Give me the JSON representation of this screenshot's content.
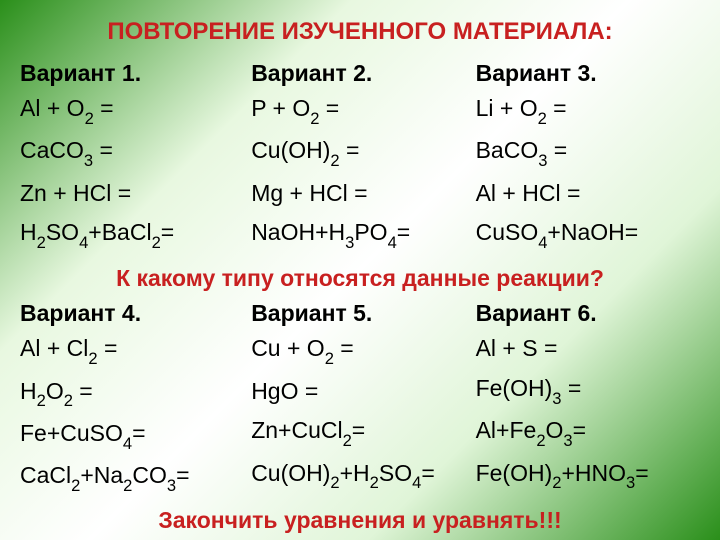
{
  "title_text": "ПОВТОРЕНИЕ ИЗУЧЕННОГО МАТЕРИАЛА:",
  "title_color": "#c82020",
  "title_fontsize": "24px",
  "var_header_fontsize": "23px",
  "eq_fontsize": "23px",
  "eq_color": "#000000",
  "question_text": "К какому типу относятся данные реакции?",
  "question_color": "#c82020",
  "question_fontsize": "23px",
  "footer_text": "Закончить уравнения и уравнять!!!",
  "footer_color": "#c82020",
  "footer_fontsize": "23px",
  "top": {
    "v1": {
      "header": "Вариант 1.",
      "r1": {
        "a": "Al + O",
        "s1": "2",
        "b": " ="
      },
      "r2": {
        "a": "CaCO",
        "s1": "3",
        "b": " ="
      },
      "r3": {
        "a": "Zn + HCl ="
      },
      "r4": {
        "a": "H",
        "s1": "2",
        "b": "SO",
        "s2": "4",
        "c": "+BaCl",
        "s3": "2",
        "d": "="
      }
    },
    "v2": {
      "header": "Вариант 2.",
      "r1": {
        "a": "P + O",
        "s1": "2",
        "b": " ="
      },
      "r2": {
        "a": "Cu(OH)",
        "s1": "2",
        "b": " ="
      },
      "r3": {
        "a": "Mg + HCl ="
      },
      "r4": {
        "a": "NaOH+H",
        "s1": "3",
        "b": "PO",
        "s2": "4",
        "c": "="
      }
    },
    "v3": {
      "header": "Вариант 3.",
      "r1": {
        "a": "Li + O",
        "s1": "2",
        "b": " ="
      },
      "r2": {
        "a": "BaCO",
        "s1": "3",
        "b": " ="
      },
      "r3": {
        "a": "Al + HCl ="
      },
      "r4": {
        "a": "CuSO",
        "s1": "4",
        "b": "+NaOH="
      }
    }
  },
  "bot": {
    "v4": {
      "header": "Вариант 4.",
      "r1": {
        "a": "Al + Cl",
        "s1": "2",
        "b": " ="
      },
      "r2": {
        "a": "H",
        "s1": "2",
        "b": "O",
        "s2": "2",
        "c": " ="
      },
      "r3": {
        "a": "Fe+CuSO",
        "s1": "4",
        "b": "="
      },
      "r4": {
        "a": "CaCl",
        "s1": "2",
        "b": "+Na",
        "s2": "2",
        "c": "CO",
        "s3": "3",
        "d": "="
      }
    },
    "v5": {
      "header": "Вариант 5.",
      "r1": {
        "a": "Cu + O",
        "s1": "2",
        "b": " ="
      },
      "r2": {
        "a": "HgO ="
      },
      "r3": {
        "a": "Zn+CuCl",
        "s1": "2",
        "b": "="
      },
      "r4": {
        "a": "Cu(OH)",
        "s1": "2",
        "b": "+H",
        "s2": "2",
        "c": "SO",
        "s3": "4",
        "d": "="
      }
    },
    "v6": {
      "header": "Вариант 6.",
      "r1": {
        "a": "Al + S ="
      },
      "r2": {
        "a": "Fe(OH)",
        "s1": "3",
        "b": " ="
      },
      "r3": {
        "a": "Al+Fe",
        "s1": "2",
        "b": "O",
        "s2": "3",
        "c": "="
      },
      "r4": {
        "a": "Fe(OH)",
        "s1": "2",
        "b": "+HNO",
        "s2": "3",
        "c": "="
      }
    }
  }
}
